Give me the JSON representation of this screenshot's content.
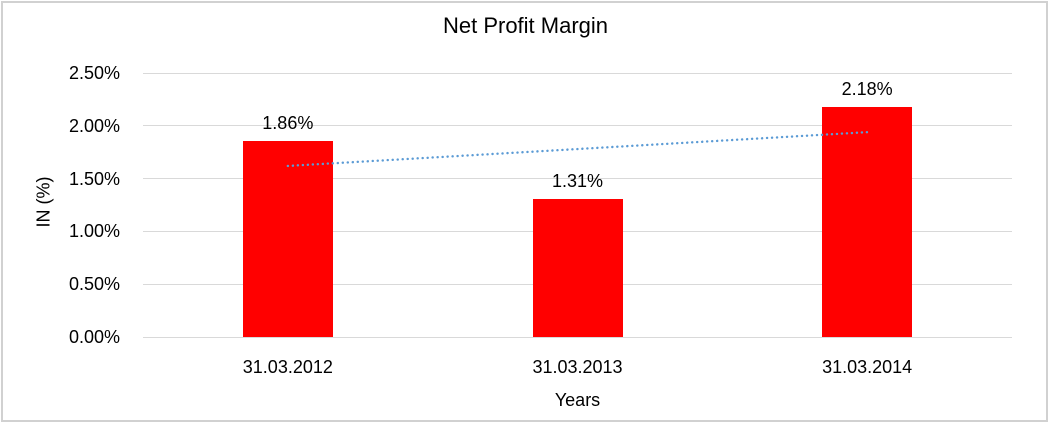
{
  "chart_data": {
    "type": "bar",
    "title": "Net Profit Margin",
    "xlabel": "Years",
    "ylabel": "IN (%)",
    "categories": [
      "31.03.2012",
      "31.03.2013",
      "31.03.2014"
    ],
    "values": [
      1.86,
      1.31,
      2.18
    ],
    "value_labels": [
      "1.86%",
      "1.31%",
      "2.18%"
    ],
    "ylim": [
      0,
      2.5
    ],
    "y_ticks": [
      {
        "value": 0.0,
        "label": "0.00%"
      },
      {
        "value": 0.5,
        "label": "0.50%"
      },
      {
        "value": 1.0,
        "label": "1.00%"
      },
      {
        "value": 1.5,
        "label": "1.50%"
      },
      {
        "value": 2.0,
        "label": "2.00%"
      },
      {
        "value": 2.5,
        "label": "2.50%"
      }
    ],
    "grid": true,
    "legend": false,
    "colors": {
      "bar": "#FF0000",
      "gridline": "#D9D9D9",
      "trendline": "#5B9BD5",
      "text": "#000000",
      "frame_border": "#D1D1D1"
    },
    "trendline": {
      "type": "linear",
      "style": "dotted",
      "start_value": 1.62,
      "end_value": 1.94
    }
  }
}
